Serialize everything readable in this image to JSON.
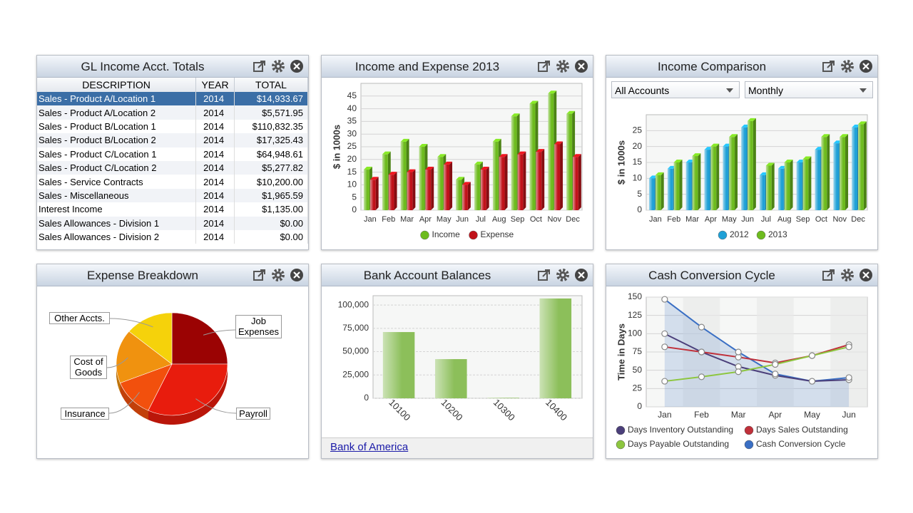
{
  "table": {
    "title": "GL Income Acct. Totals",
    "columns": [
      "DESCRIPTION",
      "YEAR",
      "TOTAL"
    ],
    "rows": [
      [
        "Sales - Product A/Location 1",
        "2014",
        "$14,933.67"
      ],
      [
        "Sales - Product A/Location 2",
        "2014",
        "$5,571.95"
      ],
      [
        "Sales - Product B/Location 1",
        "2014",
        "$110,832.35"
      ],
      [
        "Sales - Product B/Location 2",
        "2014",
        "$17,325.43"
      ],
      [
        "Sales - Product C/Location 1",
        "2014",
        "$64,948.61"
      ],
      [
        "Sales - Product C/Location 2",
        "2014",
        "$5,277.82"
      ],
      [
        "Sales - Service Contracts",
        "2014",
        "$10,200.00"
      ],
      [
        "Sales - Miscellaneous",
        "2014",
        "$1,965.59"
      ],
      [
        "Interest Income",
        "2014",
        "$1,135.00"
      ],
      [
        "Sales Allowances - Division 1",
        "2014",
        "$0.00"
      ],
      [
        "Sales Allowances - Division 2",
        "2014",
        "$0.00"
      ]
    ]
  },
  "chart_data": [
    {
      "type": "bar",
      "title": "Income and Expense 2013",
      "y_label": "$ in 1000s",
      "three_d": true,
      "grid": true,
      "categories": [
        "Jan",
        "Feb",
        "Mar",
        "Apr",
        "May",
        "Jun",
        "Jul",
        "Aug",
        "Sep",
        "Oct",
        "Nov",
        "Dec"
      ],
      "series": [
        {
          "name": "Income",
          "color": "#6dbb1e",
          "values": [
            16,
            22,
            27,
            25,
            21,
            12,
            18,
            27,
            37,
            42,
            46,
            38
          ]
        },
        {
          "name": "Expense",
          "color": "#c0121a",
          "values": [
            12,
            14,
            15,
            16,
            18,
            10,
            16,
            21,
            22,
            23,
            26,
            21
          ]
        }
      ],
      "ylim": [
        0,
        50
      ],
      "yticks": [
        0,
        5,
        10,
        15,
        20,
        25,
        30,
        35,
        40,
        45
      ]
    },
    {
      "type": "bar",
      "title": "Income Comparison",
      "filters": [
        "All Accounts",
        "Monthly"
      ],
      "y_label": "$ in 1000s",
      "three_d": true,
      "grid": true,
      "categories": [
        "Jan",
        "Feb",
        "Mar",
        "Apr",
        "May",
        "Jun",
        "Jul",
        "Aug",
        "Sep",
        "Oct",
        "Nov",
        "Dec"
      ],
      "series": [
        {
          "name": "2012",
          "color": "#1fa0d6",
          "values": [
            10,
            13,
            15,
            19,
            20,
            26,
            11,
            13,
            15,
            19,
            21,
            26
          ]
        },
        {
          "name": "2013",
          "color": "#6dbb1e",
          "values": [
            11,
            15,
            17,
            20,
            23,
            28,
            14,
            15,
            16,
            23,
            23,
            27
          ]
        }
      ],
      "ylim": [
        0,
        30
      ],
      "yticks": [
        0,
        5,
        10,
        15,
        20,
        25
      ]
    },
    {
      "type": "pie",
      "title": "Expense Breakdown",
      "labels": [
        "Job Expenses",
        "Payroll",
        "Insurance",
        "Cost of Goods",
        "Other Accts."
      ],
      "values": [
        25,
        32,
        12,
        17,
        14
      ],
      "colors": [
        "#9b0303",
        "#e81c0d",
        "#f2500d",
        "#f0920f",
        "#f5d20b"
      ]
    },
    {
      "type": "bar",
      "title": "Bank Account Balances",
      "link": "Bank of America",
      "grid": true,
      "three_d": false,
      "color": "#8cbf5a",
      "categories": [
        "10100",
        "10200",
        "10300",
        "10400"
      ],
      "values": [
        71000,
        42000,
        500,
        107000
      ],
      "ylim": [
        0,
        110000
      ],
      "yticks": [
        0,
        {
          "value": 25000,
          "label": "25,000"
        },
        {
          "value": 50000,
          "label": "50,000"
        },
        {
          "value": 75000,
          "label": "75,000"
        },
        {
          "value": 100000,
          "label": "100,000"
        }
      ]
    },
    {
      "type": "line",
      "title": "Cash Conversion Cycle",
      "y_label": "Time in Days",
      "grid": true,
      "categories": [
        "Jan",
        "Feb",
        "Mar",
        "Apr",
        "May",
        "Jun"
      ],
      "series": [
        {
          "name": "Days Inventory Outstanding",
          "color": "#4b3f7a",
          "values": [
            100,
            75,
            55,
            43,
            35,
            37
          ]
        },
        {
          "name": "Days Sales Outstanding",
          "color": "#c0303a",
          "values": [
            82,
            75,
            68,
            60,
            70,
            85
          ]
        },
        {
          "name": "Days Payable Outstanding",
          "color": "#8dc63f",
          "values": [
            35,
            41,
            48,
            58,
            70,
            82
          ]
        },
        {
          "name": "Cash Conversion Cycle",
          "color": "#3a6fc4",
          "area": true,
          "values": [
            147,
            109,
            75,
            45,
            35,
            40
          ]
        }
      ],
      "ylim": [
        0,
        150
      ],
      "yticks": [
        0,
        25,
        50,
        75,
        100,
        125,
        150
      ]
    }
  ]
}
